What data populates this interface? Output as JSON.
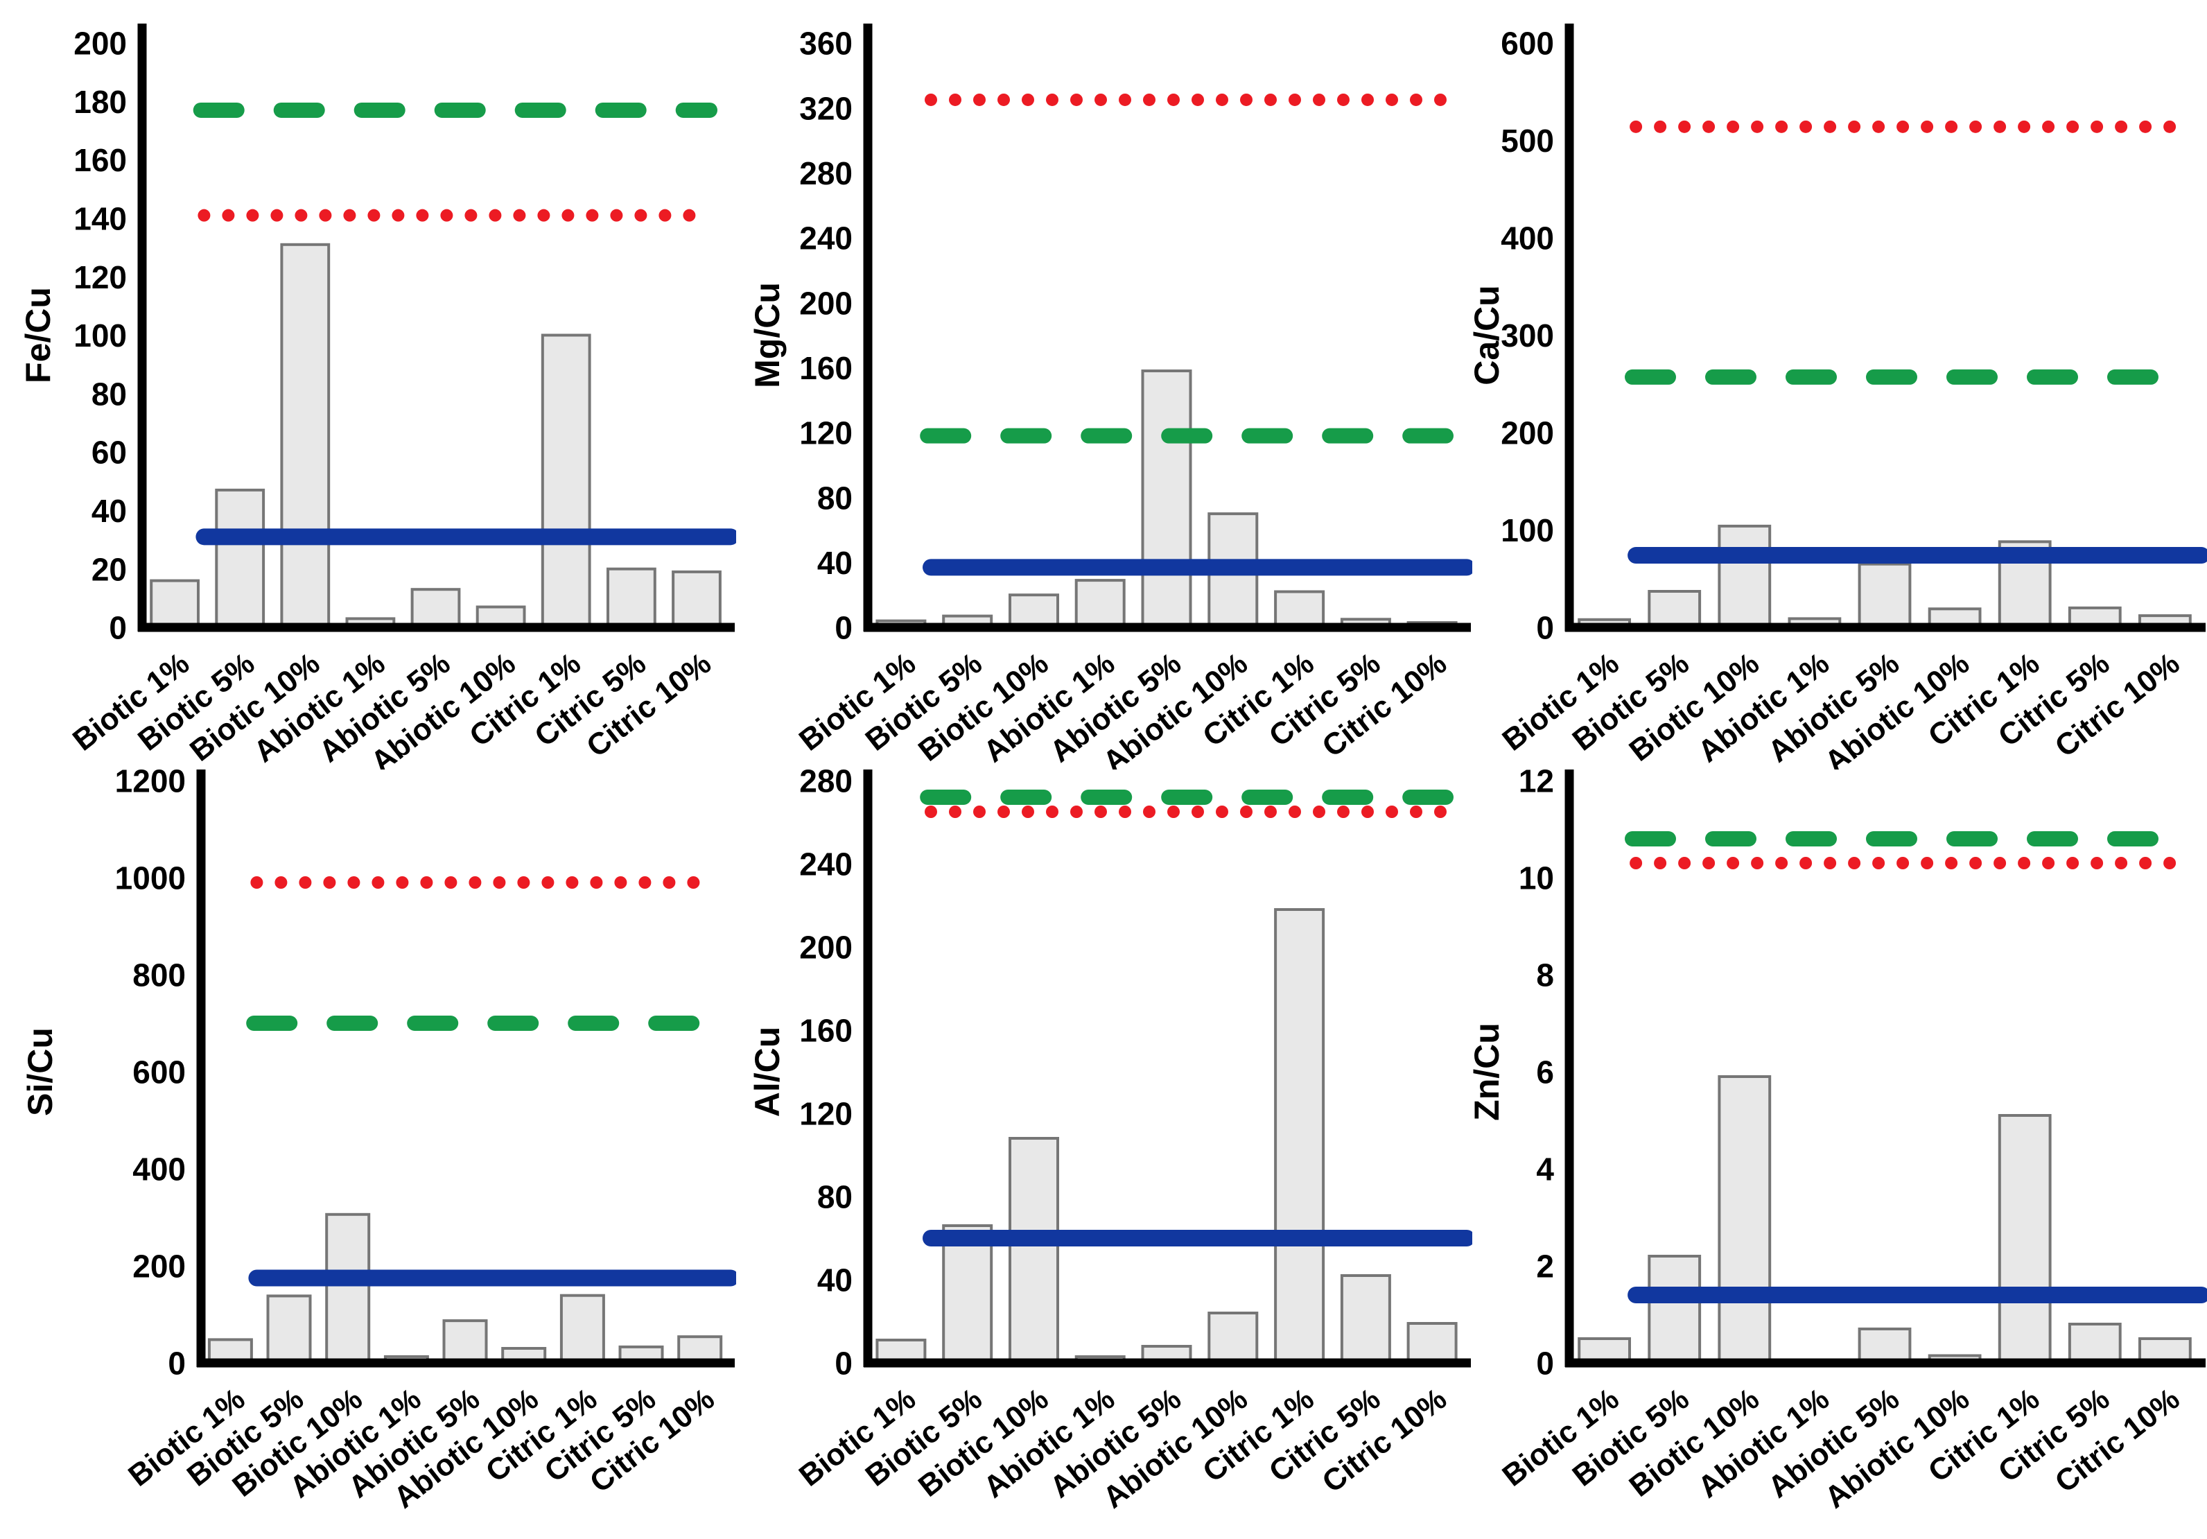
{
  "figure": {
    "description": "Six-panel bar chart figure of element-to-copper ratios with reference lines",
    "background": "#ffffff"
  },
  "colors": {
    "bar_fill": "#e8e8e8",
    "bar_stroke": "#767676",
    "axis": "#000000",
    "text": "#000000",
    "green_dashed": "#169c49",
    "red_dotted": "#ec1b23",
    "blue_solid": "#11379f"
  },
  "chart_data": [
    {
      "type": "bar",
      "ylabel": "Fe/Cu",
      "categories": [
        "Biotic 1%",
        "Biotic 5%",
        "Biotic 10%",
        "Abiotic 1%",
        "Abiotic 5%",
        "Abiotic 10%",
        "Citric 1%",
        "Citric 5%",
        "Citric 10%"
      ],
      "values": [
        16,
        47,
        131,
        3,
        13,
        7,
        100,
        20,
        19
      ],
      "ylim": [
        0,
        200
      ],
      "ytick_step": 20,
      "grid": false,
      "legend": "none",
      "ref_lines": {
        "green_dashed": 177,
        "red_dotted": 141,
        "blue_solid": 31
      }
    },
    {
      "type": "bar",
      "ylabel": "Mg/Cu",
      "categories": [
        "Biotic 1%",
        "Biotic 5%",
        "Biotic 10%",
        "Abiotic 1%",
        "Abiotic 5%",
        "Abiotic 10%",
        "Citric 1%",
        "Citric 5%",
        "Citric 10%"
      ],
      "values": [
        4,
        7,
        20,
        29,
        158,
        70,
        22,
        5,
        3
      ],
      "ylim": [
        0,
        360
      ],
      "ytick_step": 40,
      "grid": false,
      "legend": "none",
      "ref_lines": {
        "green_dashed": 118,
        "red_dotted": 325,
        "blue_solid": 37
      }
    },
    {
      "type": "bar",
      "ylabel": "Ca/Cu",
      "categories": [
        "Biotic 1%",
        "Biotic 5%",
        "Biotic 10%",
        "Abiotic 1%",
        "Abiotic 5%",
        "Abiotic 10%",
        "Citric 1%",
        "Citric 5%",
        "Citric 10%"
      ],
      "values": [
        8,
        37,
        104,
        9,
        65,
        19,
        88,
        20,
        12
      ],
      "ylim": [
        0,
        600
      ],
      "ytick_step": 100,
      "grid": false,
      "legend": "none",
      "ref_lines": {
        "green_dashed": 257,
        "red_dotted": 514,
        "blue_solid": 74
      }
    },
    {
      "type": "bar",
      "ylabel": "Si/Cu",
      "categories": [
        "Biotic 1%",
        "Biotic 5%",
        "Biotic 10%",
        "Abiotic 1%",
        "Abiotic 5%",
        "Abiotic 10%",
        "Citric 1%",
        "Citric 5%",
        "Citric 10%"
      ],
      "values": [
        48,
        138,
        306,
        13,
        87,
        30,
        139,
        33,
        54
      ],
      "ylim": [
        0,
        1200
      ],
      "ytick_step": 200,
      "grid": false,
      "legend": "none",
      "ref_lines": {
        "green_dashed": 700,
        "red_dotted": 990,
        "blue_solid": 175
      }
    },
    {
      "type": "bar",
      "ylabel": "Al/Cu",
      "categories": [
        "Biotic 1%",
        "Biotic 5%",
        "Biotic 10%",
        "Abiotic 1%",
        "Abiotic 5%",
        "Abiotic 10%",
        "Citric 1%",
        "Citric 5%",
        "Citric 10%"
      ],
      "values": [
        11,
        66,
        108,
        3,
        8,
        24,
        218,
        42,
        19
      ],
      "ylim": [
        0,
        280
      ],
      "ytick_step": 40,
      "grid": false,
      "legend": "none",
      "ref_lines": {
        "green_dashed": 272,
        "red_dotted": 265,
        "blue_solid": 60
      }
    },
    {
      "type": "bar",
      "ylabel": "Zn/Cu",
      "categories": [
        "Biotic 1%",
        "Biotic 5%",
        "Biotic 10%",
        "Abiotic 1%",
        "Abiotic 5%",
        "Abiotic 10%",
        "Citric 1%",
        "Citric 5%",
        "Citric 10%"
      ],
      "values": [
        0.5,
        2.2,
        5.9,
        0.05,
        0.7,
        0.15,
        5.1,
        0.8,
        0.5
      ],
      "ylim": [
        0,
        12
      ],
      "ytick_step": 2,
      "grid": false,
      "legend": "none",
      "ref_lines": {
        "green_dashed": 10.8,
        "red_dotted": 10.3,
        "blue_solid": 1.4
      }
    }
  ]
}
